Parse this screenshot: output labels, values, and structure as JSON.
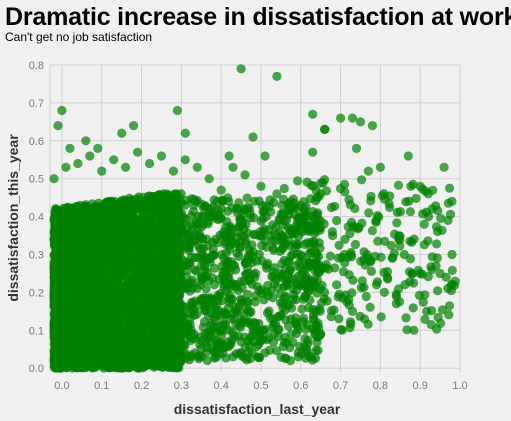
{
  "chart_data": {
    "type": "scatter",
    "title": "Dramatic increase in dissatisfaction at work",
    "subtitle": "Can't get no job satisfaction",
    "xlabel": "dissatisfaction_last_year",
    "ylabel": "dissatisfaction_this_year",
    "xlim": [
      -0.03,
      1.0
    ],
    "ylim": [
      -0.01,
      0.8
    ],
    "xticks": [
      "0.0",
      "0.1",
      "0.2",
      "0.3",
      "0.4",
      "0.5",
      "0.6",
      "0.7",
      "0.8",
      "0.9",
      "1.0"
    ],
    "yticks": [
      "0.0",
      "0.1",
      "0.2",
      "0.3",
      "0.4",
      "0.5",
      "0.6",
      "0.7",
      "0.8"
    ],
    "grid": true,
    "legend": "none",
    "colors": {
      "point": "#008000"
    },
    "points": [
      [
        0.45,
        0.79
      ],
      [
        0.54,
        0.77
      ],
      [
        0.0,
        0.68
      ],
      [
        -0.01,
        0.64
      ],
      [
        0.29,
        0.68
      ],
      [
        0.15,
        0.62
      ],
      [
        0.31,
        0.62
      ],
      [
        0.18,
        0.64
      ],
      [
        0.63,
        0.67
      ],
      [
        0.66,
        0.63
      ],
      [
        0.66,
        0.63
      ],
      [
        0.7,
        0.66
      ],
      [
        0.73,
        0.66
      ],
      [
        0.75,
        0.65
      ],
      [
        0.78,
        0.64
      ],
      [
        0.48,
        0.61
      ],
      [
        0.74,
        0.58
      ],
      [
        0.42,
        0.56
      ],
      [
        0.51,
        0.56
      ],
      [
        0.63,
        0.57
      ],
      [
        0.87,
        0.56
      ],
      [
        0.96,
        0.53
      ],
      [
        0.77,
        0.52
      ],
      [
        0.8,
        0.53
      ],
      [
        0.9,
        0.48
      ],
      [
        0.92,
        0.46
      ],
      [
        0.98,
        0.44
      ],
      [
        0.97,
        0.39
      ],
      [
        0.93,
        0.42
      ],
      [
        0.91,
        0.38
      ],
      [
        0.98,
        0.3
      ],
      [
        0.94,
        0.27
      ],
      [
        0.88,
        0.25
      ],
      [
        0.86,
        0.3
      ],
      [
        0.84,
        0.17
      ],
      [
        0.81,
        0.2
      ],
      [
        0.79,
        0.22
      ],
      [
        0.76,
        0.13
      ],
      [
        0.73,
        0.15
      ],
      [
        0.69,
        0.22
      ],
      [
        0.66,
        0.2
      ],
      [
        0.62,
        0.16
      ],
      [
        0.58,
        0.21
      ],
      [
        0.55,
        0.14
      ],
      [
        0.65,
        0.09
      ],
      [
        0.52,
        0.08
      ],
      [
        0.48,
        0.11
      ],
      [
        0.45,
        0.07
      ],
      [
        0.42,
        0.1
      ],
      [
        0.39,
        0.06
      ],
      [
        0.36,
        0.09
      ],
      [
        0.9,
        0.25
      ],
      [
        0.95,
        0.25
      ],
      [
        0.83,
        0.29
      ],
      [
        0.71,
        0.3
      ],
      [
        0.68,
        0.35
      ],
      [
        0.6,
        0.38
      ],
      [
        0.57,
        0.42
      ],
      [
        0.54,
        0.46
      ],
      [
        0.5,
        0.48
      ],
      [
        0.46,
        0.51
      ],
      [
        0.43,
        0.53
      ],
      [
        0.4,
        0.47
      ],
      [
        0.37,
        0.5
      ],
      [
        0.34,
        0.53
      ],
      [
        0.31,
        0.55
      ],
      [
        0.28,
        0.52
      ],
      [
        0.25,
        0.56
      ],
      [
        0.22,
        0.54
      ],
      [
        0.19,
        0.57
      ],
      [
        0.16,
        0.53
      ],
      [
        0.13,
        0.55
      ],
      [
        0.1,
        0.52
      ],
      [
        0.07,
        0.56
      ],
      [
        0.04,
        0.54
      ],
      [
        0.01,
        0.53
      ],
      [
        -0.02,
        0.5
      ],
      [
        0.02,
        0.58
      ],
      [
        0.06,
        0.6
      ],
      [
        0.09,
        0.58
      ]
    ],
    "dense_region": {
      "x_range": [
        -0.02,
        0.3
      ],
      "y_range": [
        0.0,
        0.42
      ],
      "description_points": 4000
    },
    "medium_region": {
      "x_range": [
        0.25,
        0.65
      ],
      "y_range": [
        0.02,
        0.45
      ],
      "description_points": 900
    },
    "sparse_region": {
      "x_range": [
        0.55,
        0.99
      ],
      "y_range": [
        0.1,
        0.5
      ],
      "description_points": 250
    }
  }
}
